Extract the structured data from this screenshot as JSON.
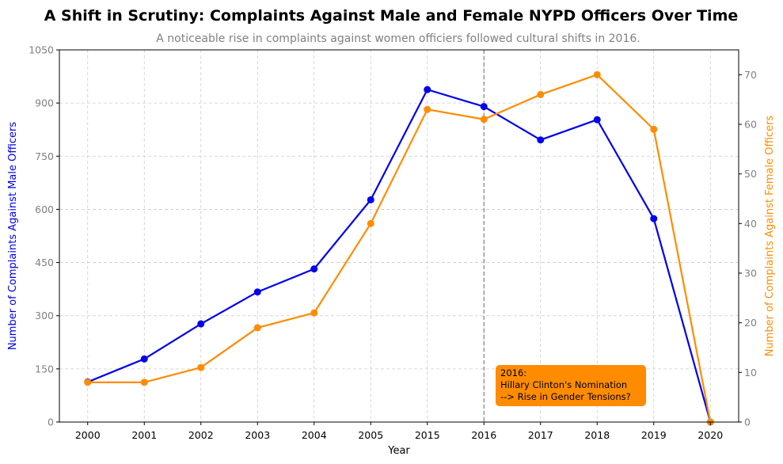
{
  "chart_data": {
    "type": "line",
    "title": "A Shift in Scrutiny: Complaints Against Male and Female NYPD Officers Over Time",
    "subtitle": "A noticeable rise in complaints against women officiers followed cultural shifts in 2016.",
    "xlabel": "Year",
    "ylabel_left": "Number of Complaints Against Male Officers",
    "ylabel_right": "Number of Complaints Against Female Officers",
    "categories": [
      "2000",
      "2001",
      "2002",
      "2003",
      "2004",
      "2005",
      "2015",
      "2016",
      "2017",
      "2018",
      "2019",
      "2020"
    ],
    "ylim_left": [
      0,
      1050
    ],
    "yticks_left": [
      "0",
      "150",
      "300",
      "450",
      "600",
      "750",
      "900",
      "1050"
    ],
    "ylim_right": [
      0,
      75
    ],
    "yticks_right": [
      "0",
      "10",
      "20",
      "30",
      "40",
      "50",
      "60",
      "70"
    ],
    "grid": true,
    "series": [
      {
        "axis": "left",
        "color": "#0000ee",
        "values": [
          113,
          178,
          277,
          367,
          432,
          627,
          938,
          890,
          796,
          853,
          574,
          0
        ]
      },
      {
        "axis": "right",
        "color": "#ff8c00",
        "values": [
          8,
          8,
          11,
          19,
          22,
          40,
          63,
          61,
          66,
          70,
          59,
          0
        ]
      }
    ],
    "vline": {
      "category": "2016",
      "color": "#808080"
    },
    "annotation": {
      "lines": [
        "2016:",
        "Hillary Clinton's Nomination",
        "--> Rise in Gender Tensions?"
      ],
      "bg_color": "#ff8c00"
    }
  }
}
